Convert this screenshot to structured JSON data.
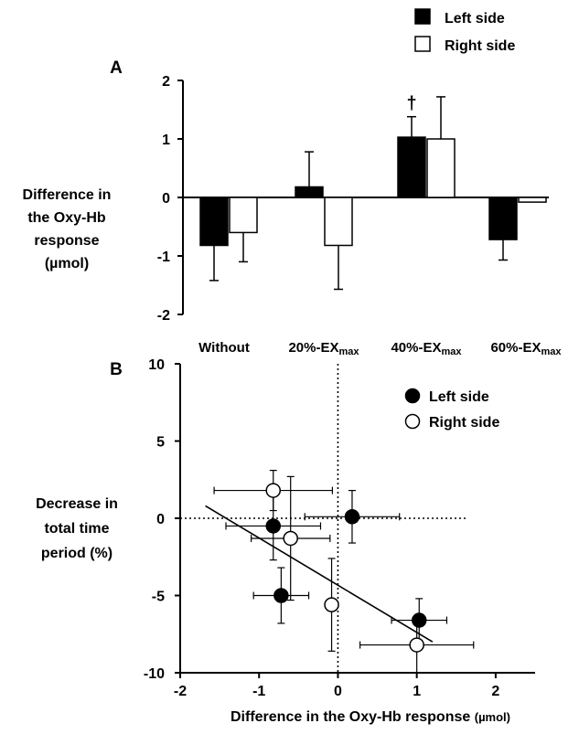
{
  "chart_data": [
    {
      "panel": "A",
      "type": "bar",
      "categories": [
        "Without",
        "20%-EX",
        "40%-EX",
        "60%-EX"
      ],
      "category_subscript": [
        "",
        "max",
        "max",
        "max"
      ],
      "series": [
        {
          "name": "Left side",
          "color": "#000000",
          "values": [
            -0.82,
            0.18,
            1.03,
            -0.72
          ],
          "errors": [
            0.6,
            0.6,
            0.35,
            0.35
          ],
          "error_direction": [
            "down",
            "up",
            "up",
            "down"
          ]
        },
        {
          "name": "Right side",
          "color": "#ffffff",
          "values": [
            -0.6,
            -0.82,
            1.0,
            -0.08
          ],
          "errors": [
            0.5,
            0.75,
            0.72,
            0.0
          ],
          "error_direction": [
            "down",
            "down",
            "up",
            "down"
          ]
        }
      ],
      "annotations": [
        {
          "text": "†",
          "category": "40%-EX",
          "series": "Left side"
        }
      ],
      "ylabel": [
        "Difference in",
        "the Oxy-Hb",
        "response",
        "(µmol)"
      ],
      "ylim": [
        -2,
        2
      ],
      "yticks": [
        "2",
        "1",
        "0",
        "-1",
        "-2"
      ],
      "ytick_values": [
        2,
        1,
        0,
        -1,
        -2
      ],
      "legend": "top-right"
    },
    {
      "panel": "B",
      "type": "scatter",
      "series": [
        {
          "name": "Left side",
          "marker": "filled-circle",
          "points": [
            {
              "x": -0.82,
              "y": -0.5,
              "xerr": 0.6,
              "yerr": 2.2
            },
            {
              "x": 0.18,
              "y": 0.1,
              "xerr": 0.6,
              "yerr": 1.7
            },
            {
              "x": -0.72,
              "y": -5.0,
              "xerr": 0.35,
              "yerr": 1.8
            },
            {
              "x": 1.03,
              "y": -6.6,
              "xerr": 0.35,
              "yerr": 1.4
            }
          ]
        },
        {
          "name": "Right side",
          "marker": "open-circle",
          "points": [
            {
              "x": -0.82,
              "y": 1.8,
              "xerr": 0.75,
              "yerr": 1.3
            },
            {
              "x": -0.6,
              "y": -1.3,
              "xerr": 0.5,
              "yerr": 4.0
            },
            {
              "x": -0.08,
              "y": -5.6,
              "xerr": 0.0,
              "yerr": 3.0
            },
            {
              "x": 1.0,
              "y": -8.2,
              "xerr": 0.72,
              "yerr": 1.8
            }
          ]
        }
      ],
      "regression_line": {
        "x": [
          -1.68,
          1.2
        ],
        "y": [
          0.8,
          -8.0
        ]
      },
      "reference_lines": {
        "x": 0,
        "y": 0,
        "style": "dotted"
      },
      "xlabel": "Difference in the Oxy-Hb response",
      "xlabel_unit": "(µmol)",
      "ylabel": [
        "Decrease in",
        "total time",
        "period (%)"
      ],
      "xlim": [
        -2,
        2.5
      ],
      "ylim": [
        -10,
        10
      ],
      "xticks": [
        "-2",
        "-1",
        "0",
        "1",
        "2"
      ],
      "xtick_values": [
        -2,
        -1,
        0,
        1,
        2
      ],
      "yticks": [
        "10",
        "5",
        "0",
        "-5",
        "-10"
      ],
      "ytick_values": [
        10,
        5,
        0,
        -5,
        -10
      ],
      "legend": "top-right"
    }
  ]
}
